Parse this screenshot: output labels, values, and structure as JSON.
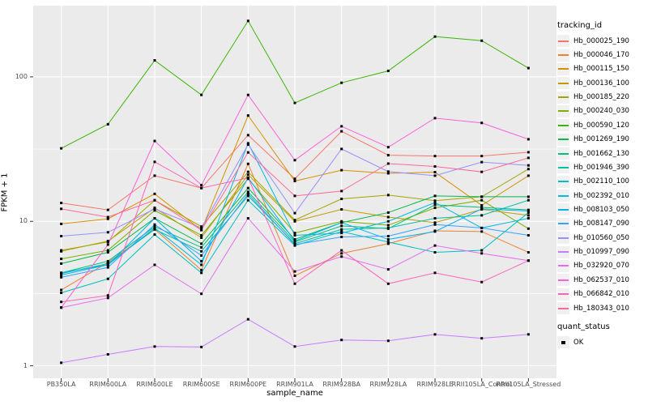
{
  "colors": {
    "panel_bg": "#EBEBEB",
    "grid": "#FFFFFF",
    "tick_mark": "#333333",
    "axis_text": "#4D4D4D",
    "legend_key_bg": "#F0F0F0",
    "point_color": "#000000"
  },
  "axes": {
    "y_major_ticks": [
      {
        "label": "100",
        "value": 100
      },
      {
        "label": "10",
        "value": 10
      },
      {
        "label": "1",
        "value": 1
      }
    ],
    "y_minor_values": [
      3.1623,
      31.6228
    ]
  },
  "legend": {
    "color_title": "tracking_id",
    "shape_title": "quant_status",
    "shape_items": [
      "OK"
    ]
  },
  "chart_data": {
    "type": "line",
    "title": "",
    "xlabel": "sample_name",
    "ylabel": "FPKM + 1",
    "yscale": "log10",
    "ylim": [
      0.82,
      311
    ],
    "grid": true,
    "legend_position": "right",
    "point_shape": "filled-square",
    "point_color": "#000000",
    "categories": [
      "PB350LA",
      "RRIM600LA",
      "RRIM600LE",
      "RRIM600SE",
      "RRIM600PE",
      "RRIM901LA",
      "RRIM928BA",
      "RRIM928LA",
      "RRIM928LE",
      "RRII105LA_Control",
      "RRII105LA_Stressed"
    ],
    "series": [
      {
        "name": "Hb_000025_190",
        "color": "#F8766D",
        "values": [
          13.4,
          12.0,
          20.7,
          17.0,
          39.5,
          19.7,
          42.0,
          28.7,
          28.3,
          28.3,
          30.1
        ]
      },
      {
        "name": "Hb_000046_170",
        "color": "#EA8331",
        "values": [
          3.35,
          5.2,
          8.8,
          4.6,
          25.0,
          4.2,
          6.0,
          7.0,
          8.6,
          8.5,
          6.1
        ]
      },
      {
        "name": "Hb_000115_150",
        "color": "#D89000",
        "values": [
          9.6,
          10.4,
          15.5,
          8.7,
          54.0,
          19.0,
          22.6,
          21.5,
          21.9,
          12.9,
          20.7
        ]
      },
      {
        "name": "Hb_000136_100",
        "color": "#C09B00",
        "values": [
          6.2,
          7.3,
          12.4,
          7.7,
          21.0,
          10.0,
          12.1,
          10.7,
          9.8,
          12.1,
          11.0
        ]
      },
      {
        "name": "Hb_000185_220",
        "color": "#A3A500",
        "values": [
          6.3,
          7.2,
          14.0,
          9.2,
          22.0,
          10.2,
          14.3,
          15.2,
          13.9,
          14.8,
          23.0
        ]
      },
      {
        "name": "Hb_000240_030",
        "color": "#7CAE00",
        "values": [
          5.5,
          6.3,
          11.9,
          8.0,
          19.7,
          8.3,
          10.0,
          9.4,
          12.4,
          14.0,
          8.9
        ]
      },
      {
        "name": "Hb_000590_120",
        "color": "#39B600",
        "values": [
          32,
          47,
          130,
          75,
          244,
          66,
          91,
          110,
          190,
          178,
          115
        ]
      },
      {
        "name": "Hb_001269_190",
        "color": "#00BB4E",
        "values": [
          5.1,
          6.1,
          10.5,
          7.0,
          17.0,
          7.5,
          9.8,
          11.5,
          15.0,
          14.8,
          14.8
        ]
      },
      {
        "name": "Hb_001662_130",
        "color": "#00BF7D",
        "values": [
          4.4,
          5.3,
          9.2,
          6.6,
          16.0,
          7.2,
          9.3,
          8.9,
          13.0,
          12.5,
          12.0
        ]
      },
      {
        "name": "Hb_001946_390",
        "color": "#00C1A3",
        "values": [
          4.35,
          5.1,
          8.8,
          6.2,
          15.0,
          7.0,
          8.8,
          9.0,
          10.5,
          11.0,
          14.0
        ]
      },
      {
        "name": "Hb_002110_100",
        "color": "#00BFC4",
        "values": [
          3.2,
          4.0,
          8.1,
          4.4,
          14.0,
          6.8,
          8.5,
          7.2,
          6.1,
          6.3,
          11.5
        ]
      },
      {
        "name": "Hb_002392_010",
        "color": "#00BAE0",
        "values": [
          4.25,
          5.0,
          9.0,
          5.0,
          34.7,
          8.0,
          8.3,
          10.0,
          13.5,
          9.0,
          10.5
        ]
      },
      {
        "name": "Hb_008103_050",
        "color": "#00B0F6",
        "values": [
          4.4,
          5.0,
          10.5,
          5.3,
          20.0,
          7.3,
          9.8,
          7.5,
          8.5,
          12.2,
          11.8
        ]
      },
      {
        "name": "Hb_008147_090",
        "color": "#35A2FF",
        "values": [
          4.1,
          4.8,
          9.5,
          5.8,
          15.5,
          6.9,
          7.8,
          7.9,
          9.5,
          9.0,
          8.0
        ]
      },
      {
        "name": "Hb_010560_050",
        "color": "#9590FF",
        "values": [
          7.9,
          8.4,
          12.2,
          9.0,
          34.0,
          11.4,
          31.7,
          22.1,
          20.7,
          25.7,
          24.4
        ]
      },
      {
        "name": "Hb_010997_090",
        "color": "#C77CFF",
        "values": [
          1.05,
          1.2,
          1.36,
          1.35,
          2.1,
          1.36,
          1.51,
          1.49,
          1.65,
          1.55,
          1.65
        ]
      },
      {
        "name": "Hb_032920_070",
        "color": "#E76BF3",
        "values": [
          2.53,
          2.95,
          5.0,
          3.15,
          10.5,
          4.5,
          5.7,
          4.65,
          6.8,
          6.0,
          5.35
        ]
      },
      {
        "name": "Hb_062537_010",
        "color": "#FA62DB",
        "values": [
          2.53,
          6.9,
          36.0,
          17.8,
          75.0,
          26.5,
          45.5,
          32.6,
          51.8,
          48.0,
          37.0
        ]
      },
      {
        "name": "Hb_066842_010",
        "color": "#FF62BC",
        "values": [
          2.77,
          3.07,
          25.8,
          17.0,
          20.0,
          3.7,
          6.3,
          3.7,
          4.4,
          3.8,
          5.35
        ]
      },
      {
        "name": "Hb_180343_010",
        "color": "#FF6A98",
        "values": [
          12.2,
          10.7,
          14.0,
          8.7,
          30.0,
          15.0,
          16.2,
          25.1,
          24.0,
          22.0,
          27.5
        ]
      }
    ]
  }
}
